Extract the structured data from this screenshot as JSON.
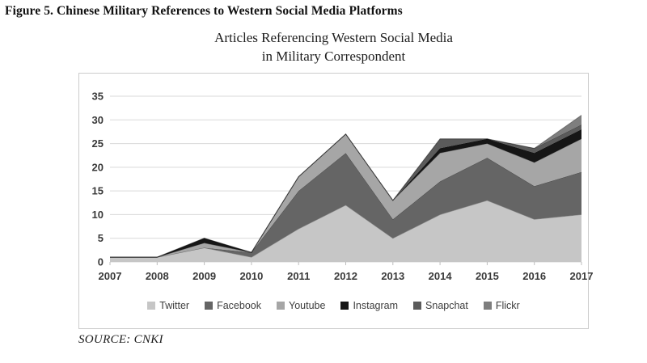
{
  "figure_caption": "Figure 5. Chinese Military References to Western Social Media Platforms",
  "chart_title_line1": "Articles Referencing Western Social Media",
  "chart_title_line2": "in Military Correspondent",
  "source": "SOURCE: CNKI",
  "chart_data": {
    "type": "area",
    "stacked": true,
    "title": "Articles Referencing Western Social Media in Military Correspondent",
    "categories": [
      "2007",
      "2008",
      "2009",
      "2010",
      "2011",
      "2012",
      "2013",
      "2014",
      "2015",
      "2016",
      "2017"
    ],
    "series": [
      {
        "name": "Twitter",
        "color": "#c6c6c6",
        "values": [
          1,
          1,
          3,
          1,
          7,
          12,
          5,
          10,
          13,
          9,
          10
        ]
      },
      {
        "name": "Facebook",
        "color": "#656565",
        "values": [
          0,
          0,
          0,
          1,
          8,
          11,
          4,
          7,
          9,
          7,
          9
        ]
      },
      {
        "name": "Youtube",
        "color": "#a6a6a6",
        "values": [
          0,
          0,
          1,
          0,
          3,
          4,
          4,
          6,
          3,
          5,
          7
        ]
      },
      {
        "name": "Instagram",
        "color": "#161616",
        "values": [
          0,
          0,
          1,
          0,
          0,
          0,
          0,
          1,
          1,
          2,
          2
        ]
      },
      {
        "name": "Snapchat",
        "color": "#5b5b5b",
        "values": [
          0,
          0,
          0,
          0,
          0,
          0,
          0,
          2,
          0,
          1,
          1
        ]
      },
      {
        "name": "Flickr",
        "color": "#7e7e7e",
        "values": [
          0,
          0,
          0,
          0,
          0,
          0,
          0,
          0,
          0,
          0,
          2
        ]
      }
    ],
    "xlabel": "",
    "ylabel": "",
    "ylim": [
      0,
      35
    ],
    "y_ticks": [
      0,
      5,
      10,
      15,
      20,
      25,
      30,
      35
    ],
    "grid": true,
    "gridline_color": "#d9d9d9",
    "edge_line_color": "rgba(0,0,0,0.28)",
    "legend_position": "bottom"
  }
}
